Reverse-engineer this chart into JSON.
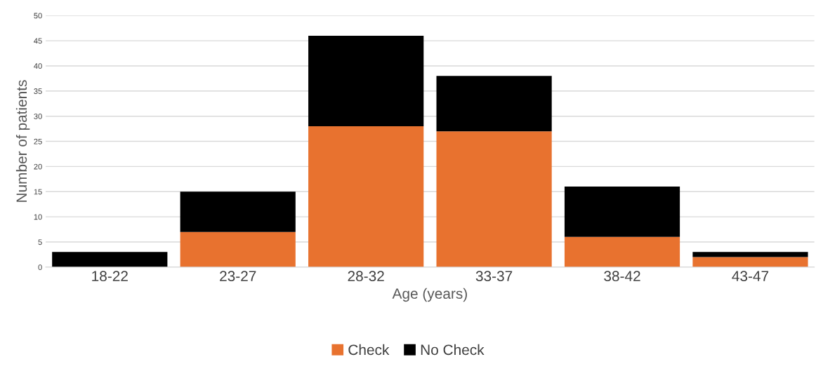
{
  "chart_data": {
    "type": "bar",
    "xlabel": "Age (years)",
    "ylabel": "Number of patients",
    "categories": [
      "18-22",
      "23-27",
      "28-32",
      "33-37",
      "38-42",
      "43-47"
    ],
    "series": [
      {
        "name": "Check",
        "color": "#e8722f",
        "values": [
          0,
          7,
          28,
          27,
          6,
          2
        ]
      },
      {
        "name": "No Check",
        "color": "#000000",
        "values": [
          3,
          8,
          18,
          11,
          10,
          1
        ]
      }
    ],
    "stacked": true,
    "ylim": [
      0,
      50
    ],
    "yticks": [
      0,
      5,
      10,
      15,
      20,
      25,
      30,
      35,
      40,
      45,
      50
    ],
    "grid": "y",
    "legend": "bottom"
  }
}
